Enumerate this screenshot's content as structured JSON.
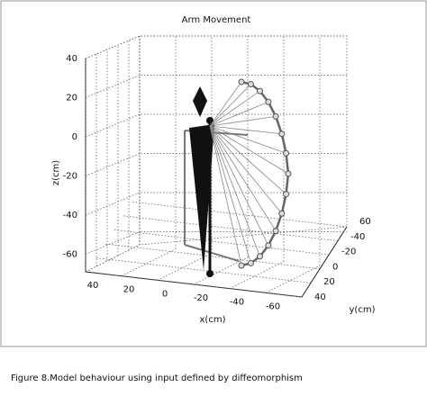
{
  "figure": {
    "title": "Arm Movement",
    "z_axis": {
      "label": "z(cm)",
      "ticks": [
        40,
        20,
        0,
        -20,
        -40,
        -60
      ]
    },
    "x_axis": {
      "label": "x(cm)",
      "ticks": [
        40,
        20,
        0,
        -20,
        -40,
        -60
      ]
    },
    "y_axis": {
      "label": "y(cm)",
      "ticks": [
        40,
        20,
        0,
        -20,
        -40,
        60
      ]
    }
  },
  "caption": "Figure 8.Model behaviour using input defined by diffeomorphism"
}
